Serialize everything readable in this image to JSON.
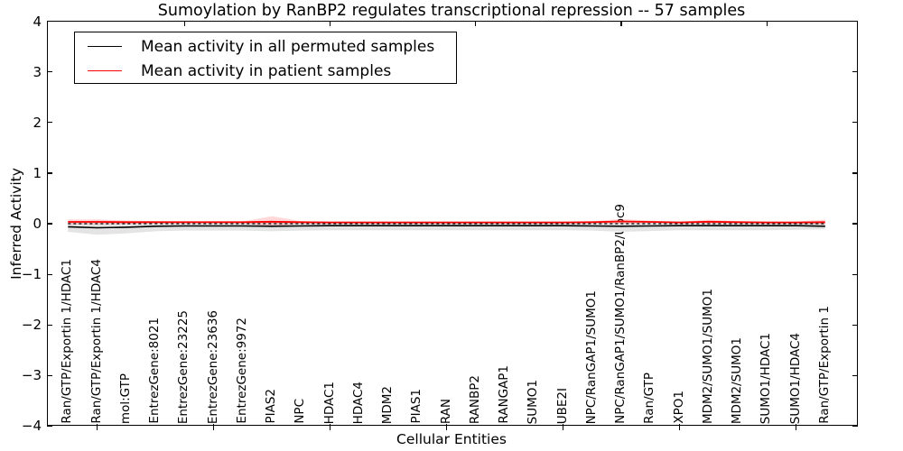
{
  "title": "Sumoylation by RanBP2 regulates transcriptional repression -- 57 samples",
  "axes": {
    "y_label": "Inferred Activity",
    "x_label": "Cellular Entities",
    "y_tick_labels": [
      "4",
      "3",
      "2",
      "1",
      "0",
      "−1",
      "−2",
      "−3",
      "−4"
    ],
    "y_tick_values": [
      4,
      3,
      2,
      1,
      0,
      -1,
      -2,
      -3,
      -4
    ]
  },
  "colors": {
    "permuted_line": "#000000",
    "patient_line": "#ff0000",
    "permuted_band": "#e4e4e4",
    "patient_band_rgba": "rgba(255,0,0,0.15)",
    "zero_line": "#000000"
  },
  "chart_data": {
    "type": "line",
    "title": "Sumoylation by RanBP2 regulates transcriptional repression -- 57 samples",
    "xlabel": "Cellular Entities",
    "ylabel": "Inferred Activity",
    "ylim": [
      -4,
      4
    ],
    "grid": false,
    "legend_position": "upper left",
    "zero_reference_line": {
      "value": 0,
      "style": "dashed",
      "color": "#000000"
    },
    "categories": [
      "Ran/GTP/Exportin 1/HDAC1",
      "Ran/GTP/Exportin 1/HDAC4",
      "mol:GTP",
      "EntrezGene:8021",
      "EntrezGene:23225",
      "EntrezGene:23636",
      "EntrezGene:9972",
      "PIAS2",
      "NPC",
      "HDAC1",
      "HDAC4",
      "MDM2",
      "PIAS1",
      "RAN",
      "RANBP2",
      "RANGAP1",
      "SUMO1",
      "UBE2I",
      "NPC/RanGAP1/SUMO1",
      "NPC/RanGAP1/SUMO1/RanBP2/Ubc9",
      "Ran/GTP",
      "XPO1",
      "MDM2/SUMO1/SUMO1",
      "MDM2/SUMO1",
      "SUMO1/HDAC1",
      "SUMO1/HDAC4",
      "Ran/GTP/Exportin 1"
    ],
    "series": [
      {
        "name": "Mean activity in all permuted samples",
        "color": "#000000",
        "values": [
          -0.06,
          -0.08,
          -0.07,
          -0.05,
          -0.045,
          -0.045,
          -0.045,
          -0.05,
          -0.045,
          -0.04,
          -0.04,
          -0.04,
          -0.04,
          -0.04,
          -0.04,
          -0.04,
          -0.04,
          -0.04,
          -0.045,
          -0.05,
          -0.045,
          -0.04,
          -0.04,
          -0.04,
          -0.04,
          -0.04,
          -0.05
        ],
        "band_halfwidth": [
          0.1,
          0.14,
          0.12,
          0.1,
          0.09,
          0.09,
          0.09,
          0.1,
          0.09,
          0.09,
          0.09,
          0.09,
          0.09,
          0.09,
          0.09,
          0.09,
          0.09,
          0.09,
          0.09,
          0.11,
          0.1,
          0.09,
          0.09,
          0.09,
          0.09,
          0.08,
          0.06
        ]
      },
      {
        "name": "Mean activity in patient samples",
        "color": "#ff0000",
        "values": [
          0.035,
          0.035,
          0.03,
          0.03,
          0.03,
          0.03,
          0.03,
          0.04,
          0.03,
          0.025,
          0.025,
          0.025,
          0.025,
          0.025,
          0.025,
          0.025,
          0.025,
          0.025,
          0.03,
          0.045,
          0.035,
          0.025,
          0.04,
          0.03,
          0.025,
          0.025,
          0.03
        ],
        "band_halfwidth": [
          0.05,
          0.05,
          0.035,
          0.02,
          0.012,
          0.012,
          0.012,
          0.11,
          0.02,
          0.012,
          0.012,
          0.012,
          0.012,
          0.012,
          0.012,
          0.012,
          0.012,
          0.012,
          0.02,
          0.05,
          0.025,
          0.015,
          0.04,
          0.02,
          0.015,
          0.02,
          0.05
        ]
      }
    ]
  }
}
